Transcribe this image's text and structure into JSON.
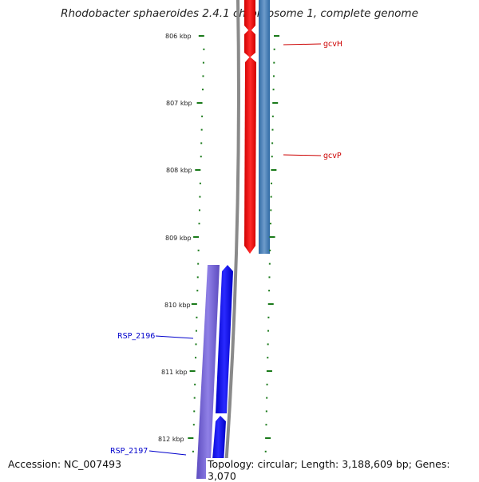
{
  "title": "Rhodobacter sphaeroides 2.4.1 chromosome 1, complete genome",
  "footer": {
    "accession": "Accession: NC_007493",
    "summary": "Topology: circular; Length: 3,188,609 bp; Genes: 3,070"
  },
  "scale": {
    "labels": [
      "806 kbp",
      "807 kbp",
      "808 kbp",
      "809 kbp",
      "810 kbp",
      "811 kbp",
      "812 kbp"
    ]
  },
  "genes": [
    {
      "name": "gcvH",
      "color": "#cc0000"
    },
    {
      "name": "gcvP",
      "color": "#cc0000"
    },
    {
      "name": "RSP_2196",
      "color": "#0000cc"
    },
    {
      "name": "RSP_2197",
      "color": "#0000cc"
    }
  ],
  "colors": {
    "forward_feature": "#ff0000",
    "forward_track": "#4a7fb5",
    "reverse_feature": "#0000ff",
    "reverse_track": "#7b68d6",
    "backbone": "#888888",
    "tick": "#1a7a1a"
  }
}
